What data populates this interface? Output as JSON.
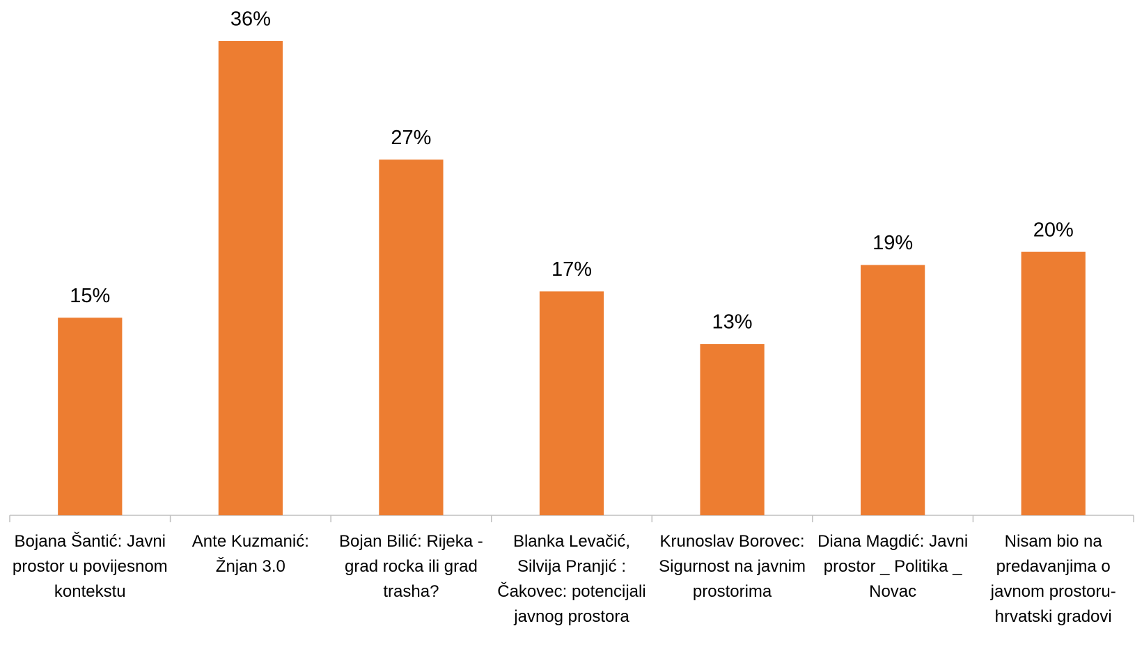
{
  "chart_data": {
    "type": "bar",
    "categories": [
      "Bojana Šantić: Javni prostor u povijesnom kontekstu",
      "Ante Kuzmanić: Žnjan 3.0",
      "Bojan Bilić: Rijeka - grad rocka ili grad trasha?",
      "Blanka Levačić, Silvija Pranjić : Čakovec: potencijali javnog prostora",
      "Krunoslav Borovec: Sigurnost na javnim prostorima",
      "Diana Magdić: Javni prostor _ Politika _ Novac",
      "Nisam bio na predavanjima o javnom prostoru- hrvatski gradovi"
    ],
    "values": [
      15,
      36,
      27,
      17,
      13,
      19,
      20
    ],
    "value_labels": [
      "15%",
      "36%",
      "27%",
      "17%",
      "13%",
      "19%",
      "20%"
    ],
    "color": "#ed7d31",
    "ylim": [
      0,
      36
    ]
  }
}
